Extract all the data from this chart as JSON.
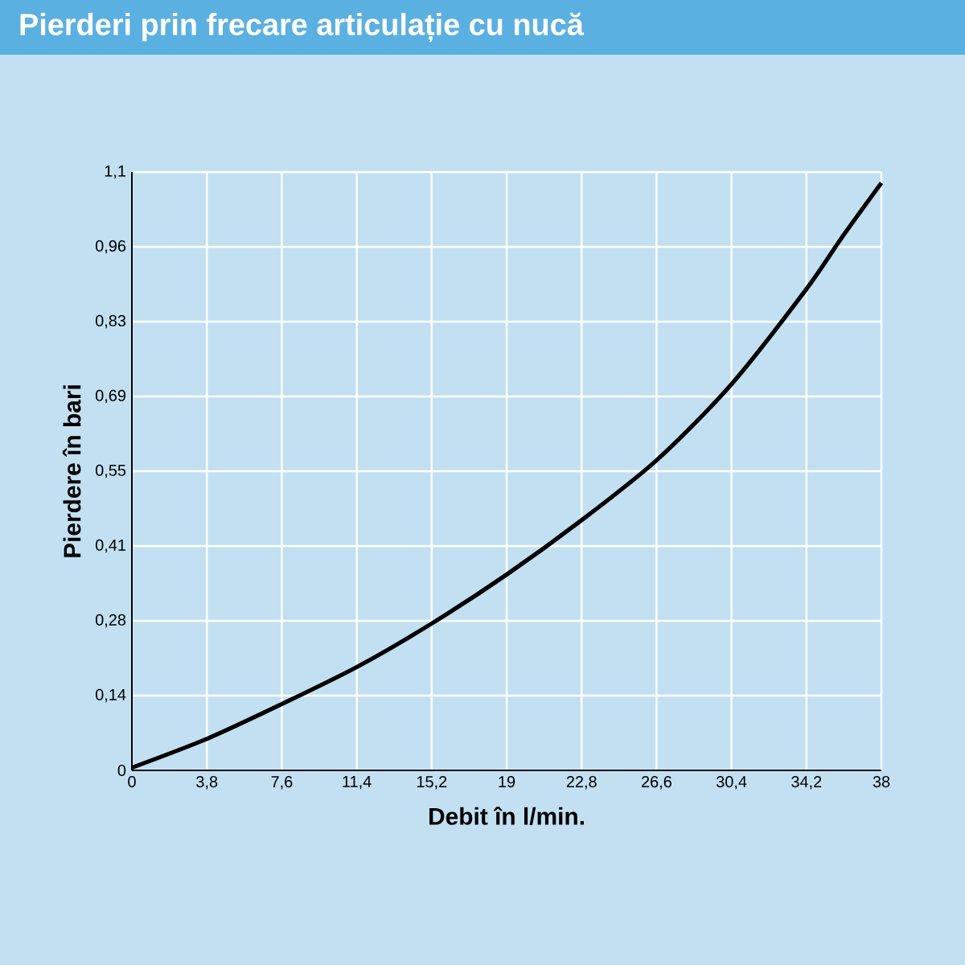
{
  "chart_data": {
    "type": "line",
    "title": "Pierderi prin frecare articulație cu nucă",
    "xlabel": "Debit în l/min.",
    "ylabel": "Pierdere în bari",
    "x": [
      0,
      3.8,
      7.6,
      11.4,
      15.2,
      19,
      22.8,
      26.6,
      30.4,
      34.2,
      36,
      38
    ],
    "series": [
      {
        "color": "#000000",
        "values": [
          0.005,
          0.058,
          0.122,
          0.19,
          0.27,
          0.36,
          0.46,
          0.57,
          0.71,
          0.885,
          0.98,
          1.08
        ]
      }
    ],
    "xlim": [
      0,
      38
    ],
    "ylim": [
      0,
      1.1
    ],
    "xticks": [
      0,
      {
        "value": 3.8,
        "label": "3,8"
      },
      {
        "value": 7.6,
        "label": "7,6"
      },
      {
        "value": 11.4,
        "label": "11,4"
      },
      {
        "value": 15.2,
        "label": "15,2"
      },
      19,
      {
        "value": 22.8,
        "label": "22,8"
      },
      {
        "value": 26.6,
        "label": "26,6"
      },
      {
        "value": 30.4,
        "label": "30,4"
      },
      {
        "value": 34.2,
        "label": "34,2"
      },
      38
    ],
    "yticks": [
      0,
      {
        "value": 0.1375,
        "label": "0,14"
      },
      {
        "value": 0.275,
        "label": "0,28"
      },
      {
        "value": 0.4125,
        "label": "0,41"
      },
      {
        "value": 0.55,
        "label": "0,55"
      },
      {
        "value": 0.6875,
        "label": "0,69"
      },
      {
        "value": 0.825,
        "label": "0,83"
      },
      {
        "value": 0.9625,
        "label": "0,96"
      },
      {
        "value": 1.1,
        "label": "1,1"
      }
    ],
    "grid": true,
    "marker": "none",
    "line_style": "solid"
  }
}
